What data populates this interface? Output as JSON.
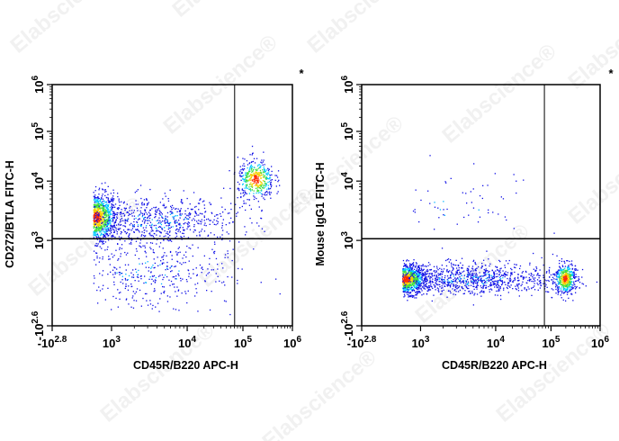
{
  "watermark": "Elabscience®",
  "chart_data": [
    {
      "type": "scatter",
      "subtype": "flow-cytometry-density-dot-plot",
      "xlabel": "CD45R/B220 APC-H",
      "ylabel": "CD272/BTLA FITC-H",
      "corner_mark": "*",
      "x_scale": "biexponential",
      "y_scale": "biexponential",
      "xlim": [
        -631,
        1000000
      ],
      "ylim": [
        -398,
        1000000
      ],
      "x_ticks": [
        {
          "base": "-10",
          "exp": "2.8",
          "value": -631
        },
        {
          "base": "10",
          "exp": "3",
          "value": 1000
        },
        {
          "base": "10",
          "exp": "4",
          "value": 10000
        },
        {
          "base": "10",
          "exp": "5",
          "value": 100000
        },
        {
          "base": "10",
          "exp": "6",
          "value": 1000000
        }
      ],
      "y_ticks": [
        {
          "base": "-10",
          "exp": "2.6",
          "value": -398
        },
        {
          "base": "10",
          "exp": "3",
          "value": 1000
        },
        {
          "base": "10",
          "exp": "4",
          "value": 10000
        },
        {
          "base": "10",
          "exp": "5",
          "value": 100000
        },
        {
          "base": "10",
          "exp": "6",
          "value": 1000000
        }
      ],
      "quadrant_gate": {
        "x": 71000,
        "y": 1070
      },
      "grid": false,
      "color_scale": [
        "#0000e0",
        "#00c8ff",
        "#3ee04a",
        "#f0e600",
        "#ff2a00"
      ],
      "populations": [
        {
          "x": 560,
          "y": 2500,
          "sd_x_decades": 0.14,
          "sd_y_decades": 0.2,
          "count": 1300,
          "dense": true
        },
        {
          "x": 4000,
          "y": 2200,
          "sd_x_decades": 0.55,
          "sd_y_decades": 0.2,
          "count": 700,
          "dense": false
        },
        {
          "x": 3000,
          "y": 500,
          "sd_x_decades": 0.6,
          "sd_y_decades": 0.3,
          "count": 450,
          "dense": false
        },
        {
          "x": 180000,
          "y": 11000,
          "sd_x_decades": 0.12,
          "sd_y_decades": 0.17,
          "count": 420,
          "dense": true
        }
      ]
    },
    {
      "type": "scatter",
      "subtype": "flow-cytometry-density-dot-plot",
      "xlabel": "CD45R/B220 APC-H",
      "ylabel": "Mouse IgG1 FITC-H",
      "corner_mark": "*",
      "x_scale": "biexponential",
      "y_scale": "biexponential",
      "xlim": [
        -631,
        1000000
      ],
      "ylim": [
        -398,
        1000000
      ],
      "x_ticks": [
        {
          "base": "-10",
          "exp": "2.8",
          "value": -631
        },
        {
          "base": "10",
          "exp": "3",
          "value": 1000
        },
        {
          "base": "10",
          "exp": "4",
          "value": 10000
        },
        {
          "base": "10",
          "exp": "5",
          "value": 100000
        },
        {
          "base": "10",
          "exp": "6",
          "value": 1000000
        }
      ],
      "y_ticks": [
        {
          "base": "-10",
          "exp": "2.6",
          "value": -398
        },
        {
          "base": "10",
          "exp": "3",
          "value": 1000
        },
        {
          "base": "10",
          "exp": "4",
          "value": 10000
        },
        {
          "base": "10",
          "exp": "5",
          "value": 100000
        },
        {
          "base": "10",
          "exp": "6",
          "value": 1000000
        }
      ],
      "quadrant_gate": {
        "x": 76000,
        "y": 1070
      },
      "grid": false,
      "color_scale": [
        "#0000e0",
        "#00c8ff",
        "#3ee04a",
        "#f0e600",
        "#ff2a00"
      ],
      "populations": [
        {
          "x": 560,
          "y": 370,
          "sd_x_decades": 0.14,
          "sd_y_decades": 0.12,
          "count": 1300,
          "dense": true
        },
        {
          "x": 4500,
          "y": 380,
          "sd_x_decades": 0.6,
          "sd_y_decades": 0.13,
          "count": 1000,
          "dense": false
        },
        {
          "x": 190000,
          "y": 380,
          "sd_x_decades": 0.07,
          "sd_y_decades": 0.13,
          "count": 450,
          "dense": true
        },
        {
          "x": 3000,
          "y": 4000,
          "sd_x_decades": 0.5,
          "sd_y_decades": 0.3,
          "count": 60,
          "dense": false
        }
      ]
    }
  ]
}
